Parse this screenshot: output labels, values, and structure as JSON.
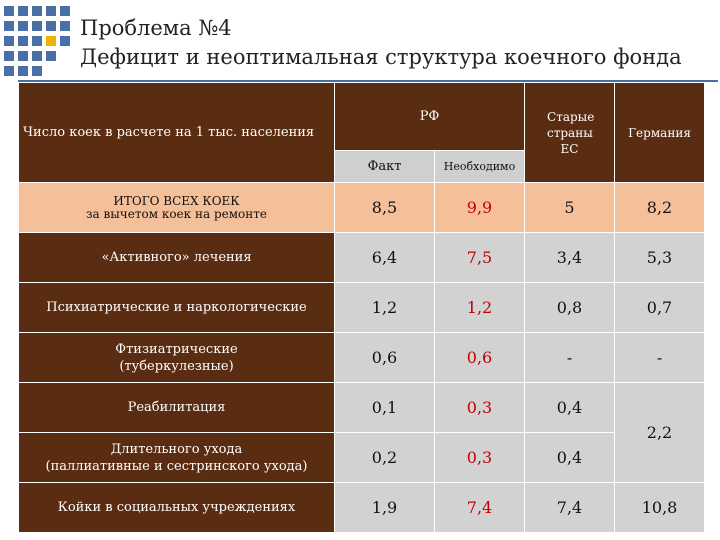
{
  "title": {
    "line1": "Проблема №4",
    "line2": "Дефицит и неоптимальная структура коечного фонда"
  },
  "table": {
    "header": {
      "label": "Число коек в расчете на 1 тыс. населения",
      "rf": "РФ",
      "fact": "Факт",
      "needed": "Необходимо",
      "eu": "Старые страны ЕС",
      "de": "Германия"
    },
    "rows": [
      {
        "label1": "ИТОГО ВСЕХ КОЕК",
        "label2": "за вычетом коек на ремонте",
        "fact": "8,5",
        "needed": "9,9",
        "eu": "5",
        "de": "8,2"
      },
      {
        "label": "«Активного» лечения",
        "fact": "6,4",
        "needed": "7,5",
        "eu": "3,4",
        "de": "5,3"
      },
      {
        "label": "Психиатрические и наркологические",
        "fact": "1,2",
        "needed": "1,2",
        "eu": "0,8",
        "de": "0,7"
      },
      {
        "label1": "Фтизиатрические",
        "label2": "(туберкулезные)",
        "fact": "0,6",
        "needed": "0,6",
        "eu": "-",
        "de": "-"
      },
      {
        "label": "Реабилитация",
        "fact": "0,1",
        "needed": "0,3",
        "eu": "0,4",
        "de": "2,2"
      },
      {
        "label1": "Длительного ухода",
        "label2": "(паллиативные и сестринского ухода)",
        "fact": "0,2",
        "needed": "0,3",
        "eu": "0,4"
      },
      {
        "label": "Койки в социальных учреждениях",
        "fact": "1,9",
        "needed": "7,4",
        "eu": "7,4",
        "de": "10,8"
      }
    ]
  },
  "colors": {
    "header_brown": "#5a2c12",
    "highlight_peach": "#f4bf99",
    "cell_gray": "#d2d2d2",
    "needed_red": "#c00000",
    "deco_blue": "#4a6fa5",
    "deco_gold": "#f0b400"
  }
}
